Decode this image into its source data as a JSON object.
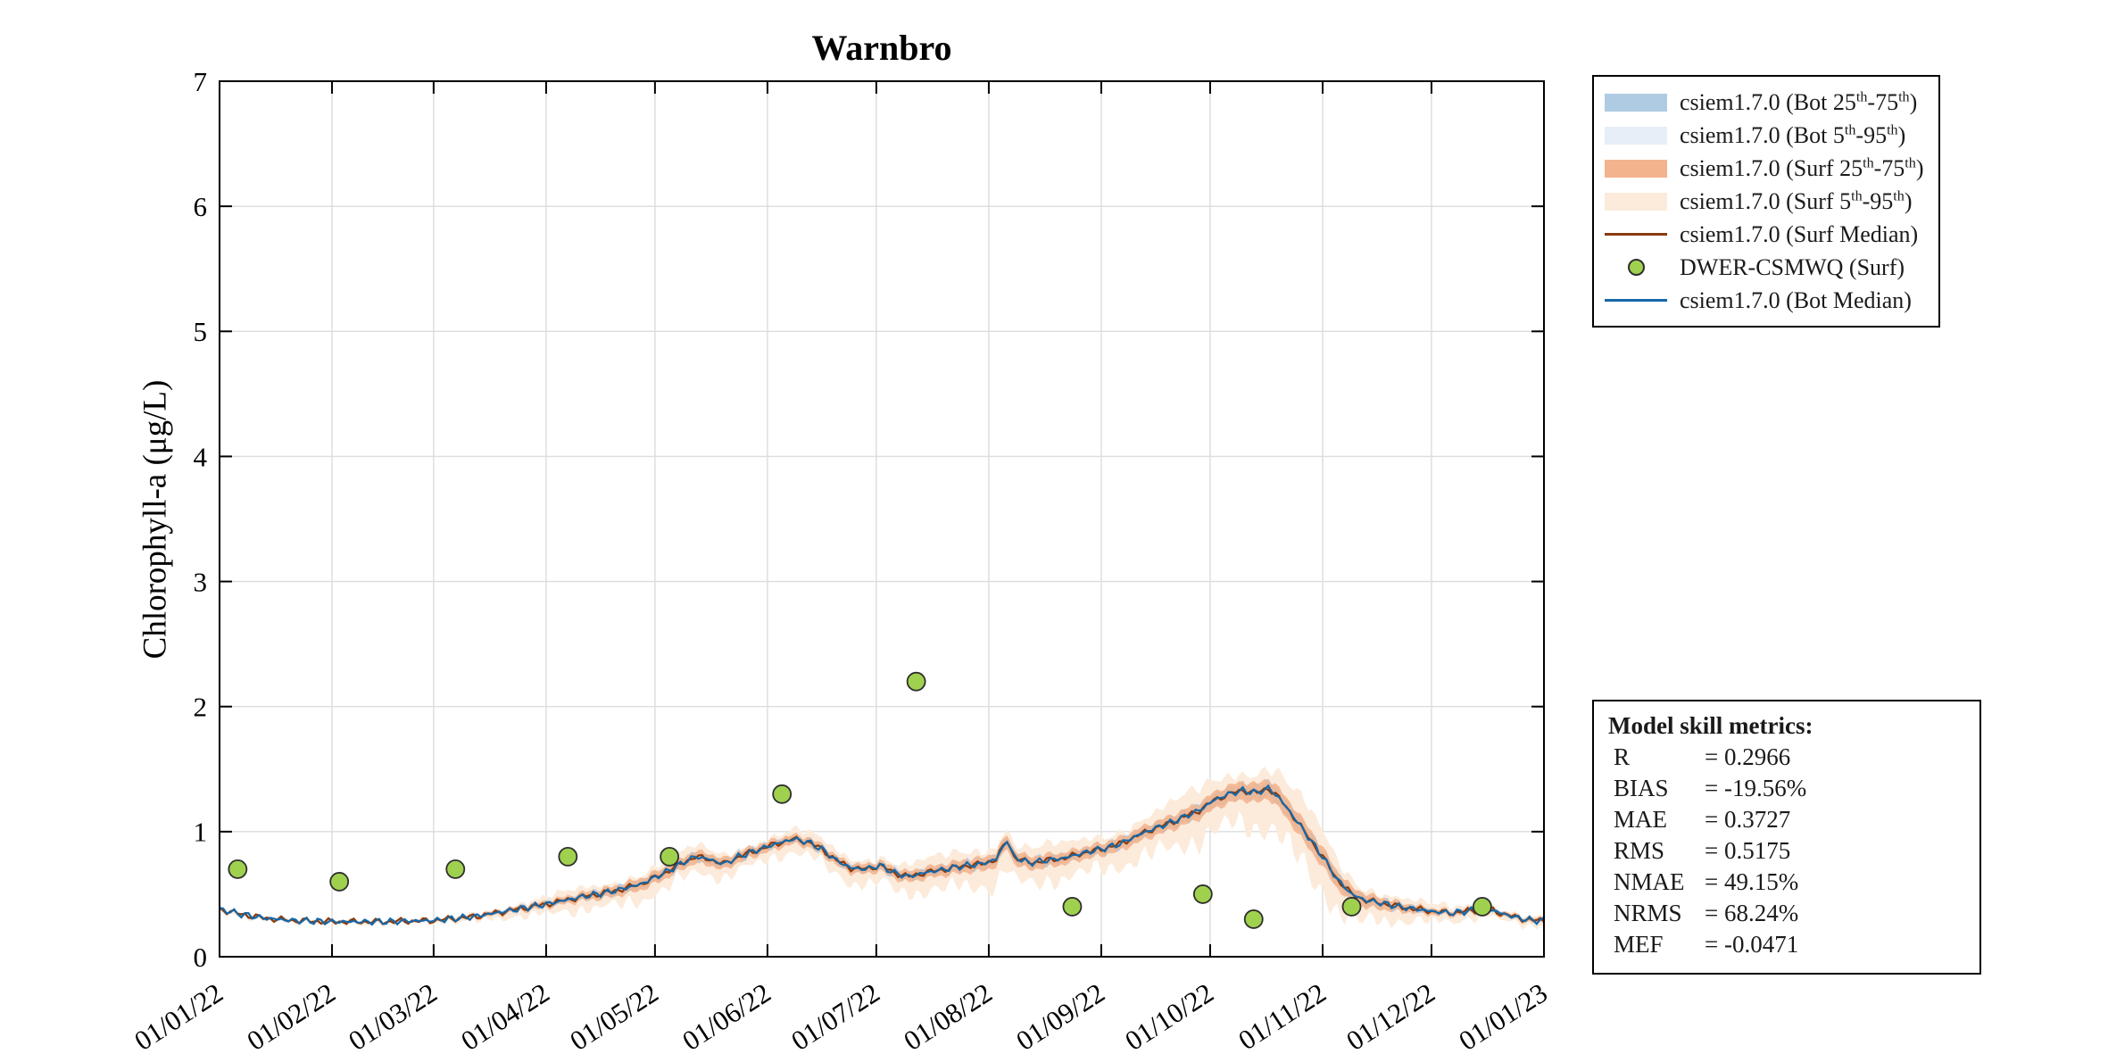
{
  "figure": {
    "title": "Warnbro",
    "ylabel": "Chlorophyll-a (μg/L)"
  },
  "chart_data": {
    "type": "line",
    "title": "Warnbro",
    "xlabel": "",
    "ylabel": "Chlorophyll-a (μg/L)",
    "ylim": [
      0,
      7
    ],
    "xlim_days": [
      0,
      365
    ],
    "grid": true,
    "legend_position": "outside-top-right",
    "y_ticks": [
      0,
      1,
      2,
      3,
      4,
      5,
      6,
      7
    ],
    "x_ticks": [
      {
        "t": 0,
        "label": "01/01/22"
      },
      {
        "t": 31,
        "label": "01/02/22"
      },
      {
        "t": 59,
        "label": "01/03/22"
      },
      {
        "t": 90,
        "label": "01/04/22"
      },
      {
        "t": 120,
        "label": "01/05/22"
      },
      {
        "t": 151,
        "label": "01/06/22"
      },
      {
        "t": 181,
        "label": "01/07/22"
      },
      {
        "t": 212,
        "label": "01/08/22"
      },
      {
        "t": 243,
        "label": "01/09/22"
      },
      {
        "t": 273,
        "label": "01/10/22"
      },
      {
        "t": 304,
        "label": "01/11/22"
      },
      {
        "t": 334,
        "label": "01/12/22"
      },
      {
        "t": 365,
        "label": "01/01/23"
      }
    ],
    "median_anchors": [
      [
        0,
        0.38
      ],
      [
        6,
        0.34
      ],
      [
        12,
        0.31
      ],
      [
        20,
        0.29
      ],
      [
        31,
        0.28
      ],
      [
        45,
        0.28
      ],
      [
        59,
        0.29
      ],
      [
        70,
        0.32
      ],
      [
        80,
        0.37
      ],
      [
        90,
        0.42
      ],
      [
        100,
        0.48
      ],
      [
        108,
        0.52
      ],
      [
        116,
        0.58
      ],
      [
        122,
        0.66
      ],
      [
        127,
        0.74
      ],
      [
        131,
        0.8
      ],
      [
        135,
        0.78
      ],
      [
        139,
        0.74
      ],
      [
        143,
        0.8
      ],
      [
        148,
        0.85
      ],
      [
        153,
        0.9
      ],
      [
        158,
        0.94
      ],
      [
        162,
        0.92
      ],
      [
        166,
        0.86
      ],
      [
        170,
        0.77
      ],
      [
        174,
        0.71
      ],
      [
        178,
        0.7
      ],
      [
        182,
        0.73
      ],
      [
        186,
        0.67
      ],
      [
        190,
        0.64
      ],
      [
        194,
        0.67
      ],
      [
        198,
        0.69
      ],
      [
        202,
        0.71
      ],
      [
        206,
        0.73
      ],
      [
        210,
        0.74
      ],
      [
        214,
        0.78
      ],
      [
        217,
        0.93
      ],
      [
        219,
        0.8
      ],
      [
        223,
        0.75
      ],
      [
        228,
        0.77
      ],
      [
        233,
        0.79
      ],
      [
        238,
        0.83
      ],
      [
        243,
        0.86
      ],
      [
        248,
        0.9
      ],
      [
        253,
        0.97
      ],
      [
        258,
        1.03
      ],
      [
        262,
        1.07
      ],
      [
        266,
        1.12
      ],
      [
        270,
        1.17
      ],
      [
        274,
        1.25
      ],
      [
        278,
        1.3
      ],
      [
        282,
        1.33
      ],
      [
        286,
        1.31
      ],
      [
        289,
        1.35
      ],
      [
        292,
        1.27
      ],
      [
        296,
        1.12
      ],
      [
        300,
        0.96
      ],
      [
        304,
        0.8
      ],
      [
        308,
        0.62
      ],
      [
        312,
        0.5
      ],
      [
        316,
        0.45
      ],
      [
        320,
        0.43
      ],
      [
        325,
        0.4
      ],
      [
        330,
        0.38
      ],
      [
        335,
        0.36
      ],
      [
        340,
        0.35
      ],
      [
        345,
        0.37
      ],
      [
        350,
        0.38
      ],
      [
        354,
        0.34
      ],
      [
        358,
        0.31
      ],
      [
        362,
        0.29
      ],
      [
        365,
        0.29
      ]
    ],
    "band_anchors": [
      [
        0,
        0.01,
        0.02
      ],
      [
        60,
        0.01,
        0.02
      ],
      [
        78,
        0.02,
        0.05
      ],
      [
        95,
        0.03,
        0.09
      ],
      [
        115,
        0.05,
        0.13
      ],
      [
        135,
        0.05,
        0.12
      ],
      [
        155,
        0.04,
        0.1
      ],
      [
        175,
        0.04,
        0.12
      ],
      [
        200,
        0.05,
        0.15
      ],
      [
        215,
        0.06,
        0.2
      ],
      [
        235,
        0.05,
        0.15
      ],
      [
        260,
        0.06,
        0.2
      ],
      [
        285,
        0.08,
        0.28
      ],
      [
        300,
        0.09,
        0.3
      ],
      [
        310,
        0.07,
        0.22
      ],
      [
        320,
        0.05,
        0.14
      ],
      [
        330,
        0.03,
        0.09
      ],
      [
        345,
        0.02,
        0.06
      ],
      [
        365,
        0.02,
        0.04
      ]
    ],
    "series": [
      {
        "name": "csiem1.7.0 (Bot 25th-75th)",
        "type": "band",
        "color": "#afcbe4"
      },
      {
        "name": "csiem1.7.0 (Bot 5th-95th)",
        "type": "band",
        "color": "#e8eef7"
      },
      {
        "name": "csiem1.7.0 (Surf 25th-75th)",
        "type": "band",
        "color": "#f3b38c"
      },
      {
        "name": "csiem1.7.0 (Surf 5th-95th)",
        "type": "band",
        "color": "#fcebdb"
      },
      {
        "name": "csiem1.7.0 (Surf Median)",
        "type": "line",
        "color": "#8a3a0b"
      },
      {
        "name": "DWER-CSMWQ (Surf)",
        "type": "marker",
        "color": "#9fd14f"
      },
      {
        "name": "csiem1.7.0 (Bot Median)",
        "type": "line",
        "color": "#1668a8"
      }
    ],
    "observations": {
      "name": "DWER-CSMWQ (Surf)",
      "points": [
        [
          5,
          0.7
        ],
        [
          33,
          0.6
        ],
        [
          65,
          0.7
        ],
        [
          96,
          0.8
        ],
        [
          124,
          0.8
        ],
        [
          155,
          1.3
        ],
        [
          192,
          2.2
        ],
        [
          235,
          0.4
        ],
        [
          271,
          0.5
        ],
        [
          285,
          0.3
        ],
        [
          312,
          0.4
        ],
        [
          348,
          0.4
        ]
      ]
    }
  },
  "legend": {
    "items": [
      {
        "label": "csiem1.7.0 (Bot 25th-75th)",
        "swatch": "band",
        "color": "#afcbe4"
      },
      {
        "label": "csiem1.7.0 (Bot 5th-95th)",
        "swatch": "band",
        "color": "#e8eef7"
      },
      {
        "label": "csiem1.7.0 (Surf 25th-75th)",
        "swatch": "band",
        "color": "#f3b38c"
      },
      {
        "label": "csiem1.7.0 (Surf 5th-95th)",
        "swatch": "band",
        "color": "#fcebdb"
      },
      {
        "label": "csiem1.7.0 (Surf Median)",
        "swatch": "line",
        "color": "#8a3a0b"
      },
      {
        "label": "DWER-CSMWQ (Surf)",
        "swatch": "marker",
        "color": "#9fd14f"
      },
      {
        "label": "csiem1.7.0 (Bot Median)",
        "swatch": "line",
        "color": "#1668a8"
      }
    ]
  },
  "metrics": {
    "title": "Model skill metrics:",
    "rows": [
      {
        "label": "R",
        "value": "0.2966"
      },
      {
        "label": "BIAS",
        "value": "-19.56%"
      },
      {
        "label": "MAE",
        "value": "0.3727"
      },
      {
        "label": "RMS",
        "value": "0.5175"
      },
      {
        "label": "NMAE",
        "value": "49.15%"
      },
      {
        "label": "NRMS",
        "value": "68.24%"
      },
      {
        "label": "MEF",
        "value": "-0.0471"
      }
    ]
  },
  "colors": {
    "bot_band_2575": "#afcbe4",
    "bot_band_595": "#e8eef7",
    "surf_band_2575": "#f3b38c",
    "surf_band_595": "#fcebdb",
    "surf_median": "#8a3a0b",
    "bot_median": "#1668a8",
    "obs_fill": "#9fd14f",
    "obs_edge": "#2e2e2e",
    "grid": "#dcdcdc",
    "axis": "#000000"
  }
}
